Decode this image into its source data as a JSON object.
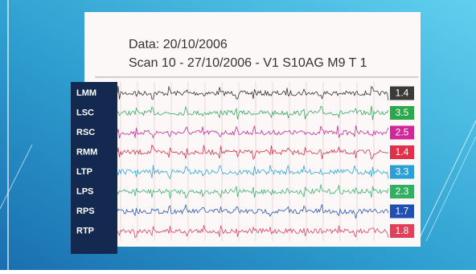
{
  "scan": {
    "date_line": "Data: 20/10/2006",
    "scan_line": "Scan 10 - 27/10/2006 - V1 S10AG M9  T 1",
    "channels": [
      {
        "label": "LMM",
        "value": "1.4",
        "color": "#3a3a3a",
        "trace_color": "#333333"
      },
      {
        "label": "LSC",
        "value": "3.5",
        "color": "#2aa84a",
        "trace_color": "#3aa860"
      },
      {
        "label": "RSC",
        "value": "2.5",
        "color": "#d0289a",
        "trace_color": "#cc2a9a"
      },
      {
        "label": "RMM",
        "value": "1.4",
        "color": "#e0304a",
        "trace_color": "#d83048"
      },
      {
        "label": "LTP",
        "value": "3.3",
        "color": "#2aa0d8",
        "trace_color": "#30a8d8"
      },
      {
        "label": "LPS",
        "value": "2.3",
        "color": "#30b060",
        "trace_color": "#40b070"
      },
      {
        "label": "RPS",
        "value": "1.7",
        "color": "#1f4fb0",
        "trace_color": "#2a56b8"
      },
      {
        "label": "RTP",
        "value": "1.8",
        "color": "#e0405a",
        "trace_color": "#e04060"
      }
    ]
  }
}
